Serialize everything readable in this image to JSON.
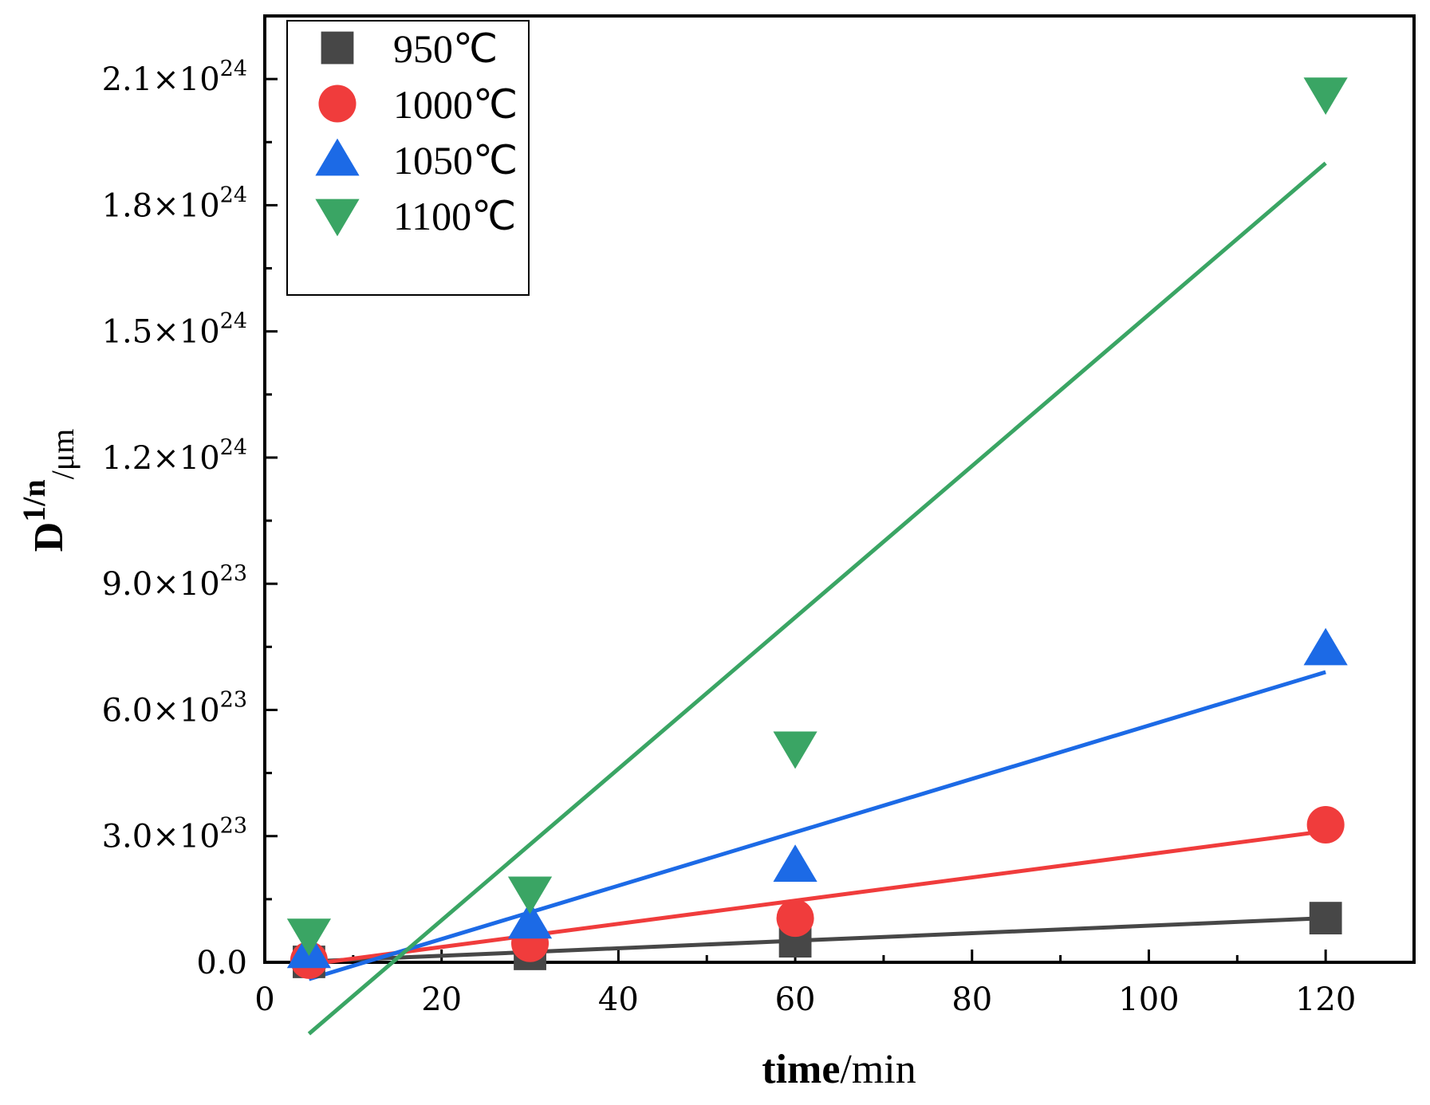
{
  "chart_data": {
    "type": "scatter",
    "title": "",
    "xlabel": {
      "bold": "time",
      "rest": "/min"
    },
    "ylabel": {
      "main": "D",
      "sup": "1/n",
      "sub": "/μm"
    },
    "xlim": [
      0,
      130
    ],
    "ylim": [
      0,
      2.25e+24
    ],
    "xticks": [
      0,
      20,
      40,
      60,
      80,
      100,
      120
    ],
    "xtick_labels": [
      "0",
      "20",
      "40",
      "60",
      "80",
      "100",
      "120"
    ],
    "yticks": [
      0,
      3e+23,
      6e+23,
      9e+23,
      1.2e+24,
      1.5e+24,
      1.8e+24,
      2.1e+24
    ],
    "ytick_labels": [
      {
        "mant": "0.0",
        "exp": ""
      },
      {
        "mant": "3.0×10",
        "exp": "23"
      },
      {
        "mant": "6.0×10",
        "exp": "23"
      },
      {
        "mant": "9.0×10",
        "exp": "23"
      },
      {
        "mant": "1.2×10",
        "exp": "24"
      },
      {
        "mant": "1.5×10",
        "exp": "24"
      },
      {
        "mant": "1.8×10",
        "exp": "24"
      },
      {
        "mant": "2.1×10",
        "exp": "24"
      }
    ],
    "legend_position": "top-left",
    "series": [
      {
        "name": "950℃",
        "color": "#474747",
        "marker": "square",
        "x": [
          5,
          30,
          60,
          120
        ],
        "y": [
          1e+21,
          2e+22,
          5e+22,
          1.05e+23
        ],
        "fit": {
          "x": [
            5,
            120
          ],
          "y": [
            2e+21,
            1.05e+23
          ]
        }
      },
      {
        "name": "1000℃",
        "color": "#f03c3c",
        "marker": "circle",
        "x": [
          5,
          30,
          60,
          120
        ],
        "y": [
          5e+21,
          4.5e+22,
          1.05e+23,
          3.27e+23
        ],
        "fit": {
          "x": [
            5,
            120
          ],
          "y": [
            -5e+21,
            3.12e+23
          ]
        }
      },
      {
        "name": "1050℃",
        "color": "#1c6ae6",
        "marker": "triangle-up",
        "x": [
          5,
          30,
          60,
          120
        ],
        "y": [
          2.5e+22,
          9.5e+22,
          2.3e+23,
          7.45e+23
        ],
        "fit": {
          "x": [
            5,
            120
          ],
          "y": [
            -4e+22,
            6.9e+23
          ]
        }
      },
      {
        "name": "1100℃",
        "color": "#3aa564",
        "marker": "triangle-down",
        "x": [
          5,
          30,
          60,
          120
        ],
        "y": [
          6.5e+22,
          1.65e+23,
          5.1e+23,
          2.065e+24
        ],
        "fit": {
          "x": [
            5,
            120
          ],
          "y": [
            -1.7e+23,
            1.9e+24
          ]
        }
      }
    ]
  }
}
